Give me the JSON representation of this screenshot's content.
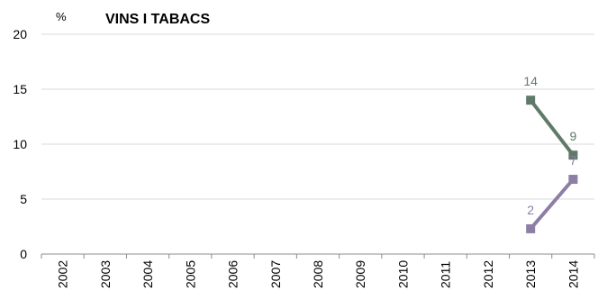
{
  "chart_data": {
    "type": "line",
    "title": "VINS I TABACS",
    "unit_label": "%",
    "categories": [
      "2002",
      "2003",
      "2004",
      "2005",
      "2006",
      "2007",
      "2008",
      "2009",
      "2010",
      "2011",
      "2012",
      "2013",
      "2014"
    ],
    "ylim": [
      0,
      20
    ],
    "yticks": [
      0,
      5,
      10,
      15,
      20
    ],
    "grid": true,
    "series": [
      {
        "color": "#5f7a69",
        "values": [
          null,
          null,
          null,
          null,
          null,
          null,
          null,
          null,
          null,
          null,
          null,
          14,
          9
        ],
        "labels": [
          null,
          null,
          null,
          null,
          null,
          null,
          null,
          null,
          null,
          null,
          null,
          "14",
          "9"
        ]
      },
      {
        "color": "#8e7ea6",
        "values": [
          null,
          null,
          null,
          null,
          null,
          null,
          null,
          null,
          null,
          null,
          null,
          2.3,
          6.8
        ],
        "labels": [
          null,
          null,
          null,
          null,
          null,
          null,
          null,
          null,
          null,
          null,
          null,
          "2",
          "7"
        ]
      }
    ]
  }
}
